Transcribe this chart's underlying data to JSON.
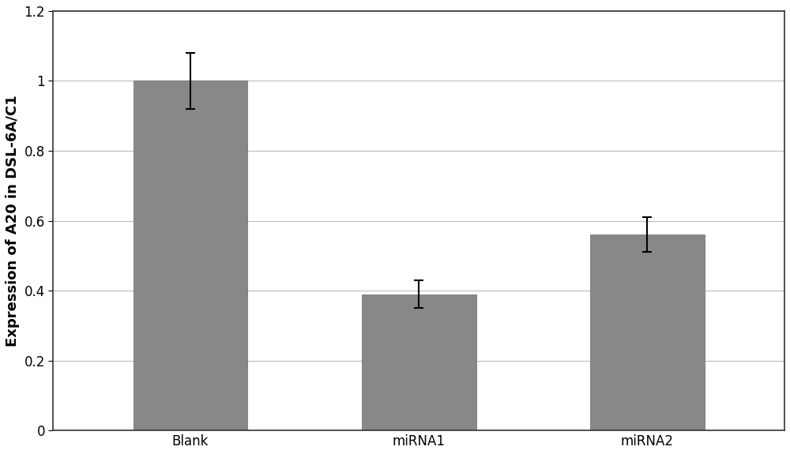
{
  "categories": [
    "Blank",
    "miRNA1",
    "miRNA2"
  ],
  "values": [
    1.0,
    0.39,
    0.56
  ],
  "errors": [
    0.08,
    0.04,
    0.05
  ],
  "bar_color": "#888888",
  "bar_width": 0.5,
  "ylabel": "Expression of A20 in DSL-6A/C1",
  "ylim": [
    0,
    1.2
  ],
  "yticks": [
    0,
    0.2,
    0.4,
    0.6,
    0.8,
    1.0,
    1.2
  ],
  "ytick_labels": [
    "0",
    "0.2",
    "0.4",
    "0.6",
    "0.8",
    "1",
    "1.2"
  ],
  "background_color": "#ffffff",
  "grid_color": "#bbbbbb",
  "axis_fontsize": 13,
  "tick_fontsize": 12,
  "error_capsize": 4,
  "error_color": "black",
  "error_linewidth": 1.5,
  "spine_color": "#333333",
  "xlim": [
    -0.6,
    2.6
  ]
}
